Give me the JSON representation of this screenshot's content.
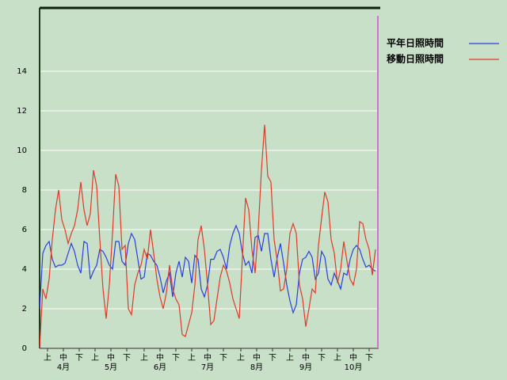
{
  "chart_data": {
    "type": "line",
    "x": [
      0,
      2,
      4,
      6,
      8,
      10,
      12,
      14,
      16,
      18,
      20,
      22,
      24,
      26,
      28,
      30,
      32,
      34,
      36,
      38,
      40,
      42,
      44,
      46,
      48,
      50,
      52,
      54,
      56,
      58,
      60,
      62,
      64,
      66,
      68,
      70,
      72,
      74,
      76,
      78,
      80,
      82,
      84,
      86,
      88,
      90,
      92,
      94,
      96,
      98,
      100,
      102,
      104,
      106,
      108,
      110,
      112,
      114,
      116,
      118,
      120,
      122,
      124,
      126,
      128,
      130,
      132,
      134,
      136,
      138,
      140,
      142,
      144,
      146,
      148,
      150,
      152,
      154,
      156,
      158,
      160,
      162,
      164,
      166,
      168,
      170,
      172,
      174,
      176,
      178,
      180,
      182,
      184,
      186,
      188,
      190,
      192,
      194,
      196,
      198,
      200,
      202,
      204,
      206,
      208,
      210,
      212
    ],
    "series": [
      {
        "name": "平年日照時間",
        "color": "#2a3fe0",
        "values": [
          2.0,
          4.8,
          5.2,
          5.4,
          4.5,
          4.1,
          4.2,
          4.2,
          4.3,
          4.8,
          5.3,
          4.9,
          4.2,
          3.8,
          5.4,
          5.3,
          3.5,
          3.9,
          4.2,
          5.0,
          4.9,
          4.6,
          4.2,
          4.0,
          5.4,
          5.4,
          4.4,
          4.2,
          5.3,
          5.8,
          5.5,
          4.5,
          3.5,
          3.6,
          4.8,
          4.7,
          4.4,
          4.2,
          3.6,
          2.8,
          3.4,
          3.8,
          2.6,
          3.8,
          4.4,
          3.6,
          4.6,
          4.4,
          3.3,
          4.7,
          4.5,
          3.0,
          2.6,
          3.2,
          4.5,
          4.5,
          4.9,
          5.0,
          4.6,
          4.0,
          5.2,
          5.8,
          6.2,
          5.8,
          4.8,
          4.2,
          4.4,
          3.8,
          5.6,
          5.7,
          4.9,
          5.8,
          5.8,
          4.5,
          3.6,
          4.6,
          5.3,
          4.3,
          3.2,
          2.4,
          1.8,
          2.2,
          3.8,
          4.5,
          4.6,
          4.9,
          4.6,
          3.5,
          3.8,
          4.9,
          4.6,
          3.5,
          3.2,
          3.8,
          3.4,
          3.0,
          3.8,
          3.7,
          4.5,
          5.0,
          5.2,
          5.0,
          4.5,
          4.1,
          4.2,
          4.0,
          3.9
        ]
      },
      {
        "name": "移動日照時間",
        "color": "#e03a2a",
        "values": [
          0,
          3.0,
          2.5,
          3.5,
          5.5,
          7.0,
          8.0,
          6.5,
          6.0,
          5.3,
          5.8,
          6.2,
          7.0,
          8.4,
          7.0,
          6.2,
          6.8,
          9.0,
          8.2,
          5.5,
          3.0,
          1.5,
          3.2,
          5.8,
          8.8,
          8.2,
          5.0,
          5.2,
          2.0,
          1.7,
          3.2,
          3.8,
          4.2,
          5.0,
          4.5,
          6.0,
          4.8,
          3.5,
          2.6,
          2.0,
          2.8,
          4.2,
          3.0,
          2.5,
          2.2,
          0.7,
          0.6,
          1.2,
          1.8,
          3.2,
          5.5,
          6.2,
          5.0,
          3.2,
          1.2,
          1.4,
          2.5,
          3.6,
          4.2,
          3.9,
          3.3,
          2.5,
          2.0,
          1.5,
          4.6,
          7.6,
          7.0,
          5.0,
          3.8,
          6.0,
          9.0,
          11.3,
          8.7,
          8.4,
          5.5,
          4.4,
          2.9,
          3.0,
          4.0,
          5.8,
          6.3,
          5.8,
          3.2,
          2.5,
          1.1,
          2.0,
          3.0,
          2.8,
          5.2,
          6.6,
          7.9,
          7.4,
          5.5,
          4.8,
          3.3,
          4.0,
          5.4,
          4.4,
          3.5,
          3.2,
          4.0,
          6.4,
          6.3,
          5.5,
          5.0,
          3.7,
          5.0
        ]
      }
    ],
    "xlim": [
      0,
      214
    ],
    "ylim": [
      0,
      17.2
    ],
    "yticks": [
      0,
      2,
      4,
      6,
      8,
      10,
      12,
      14
    ],
    "xticks": [
      {
        "value": 5,
        "label": "上"
      },
      {
        "value": 15,
        "label": "中"
      },
      {
        "value": 25,
        "label": "下"
      },
      {
        "value": 35,
        "label": "上"
      },
      {
        "value": 45,
        "label": "中"
      },
      {
        "value": 55,
        "label": "下"
      },
      {
        "value": 66,
        "label": "上"
      },
      {
        "value": 76,
        "label": "中"
      },
      {
        "value": 86,
        "label": "下"
      },
      {
        "value": 96,
        "label": "上"
      },
      {
        "value": 106,
        "label": "中"
      },
      {
        "value": 116,
        "label": "下"
      },
      {
        "value": 127,
        "label": "上"
      },
      {
        "value": 137,
        "label": "中"
      },
      {
        "value": 147,
        "label": "下"
      },
      {
        "value": 158,
        "label": "上"
      },
      {
        "value": 168,
        "label": "中"
      },
      {
        "value": 178,
        "label": "下"
      },
      {
        "value": 188,
        "label": "上"
      },
      {
        "value": 198,
        "label": "中"
      },
      {
        "value": 208,
        "label": "下"
      }
    ],
    "month_labels": [
      {
        "value": 15,
        "label": "4月"
      },
      {
        "value": 45,
        "label": "5月"
      },
      {
        "value": 76,
        "label": "6月"
      },
      {
        "value": 106,
        "label": "7月"
      },
      {
        "value": 137,
        "label": "8月"
      },
      {
        "value": 168,
        "label": "9月"
      },
      {
        "value": 198,
        "label": "10月"
      }
    ],
    "vline": 213.5,
    "vline_color": "#d070d0",
    "grid": true
  }
}
